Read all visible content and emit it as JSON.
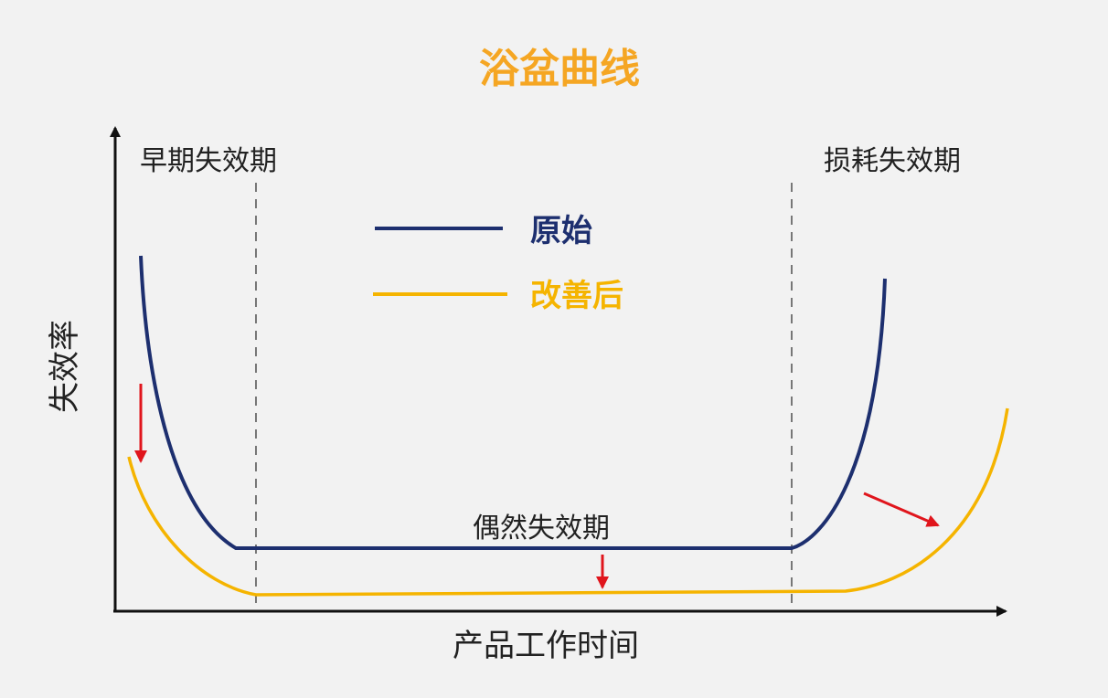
{
  "title": "浴盆曲线",
  "colors": {
    "background": "#f2f2f2",
    "title": "#f5a623",
    "original": "#1d2f6f",
    "improved": "#f5b400",
    "arrow": "#e0151c",
    "axis": "#111111",
    "text": "#222222",
    "divider": "#777777"
  },
  "axes": {
    "x_label": "产品工作时间",
    "y_label": "失效率"
  },
  "phases": {
    "early": "早期失效期",
    "random": "偶然失效期",
    "wearout": "损耗失效期"
  },
  "legend": {
    "original": "原始",
    "improved": "改善后"
  }
}
